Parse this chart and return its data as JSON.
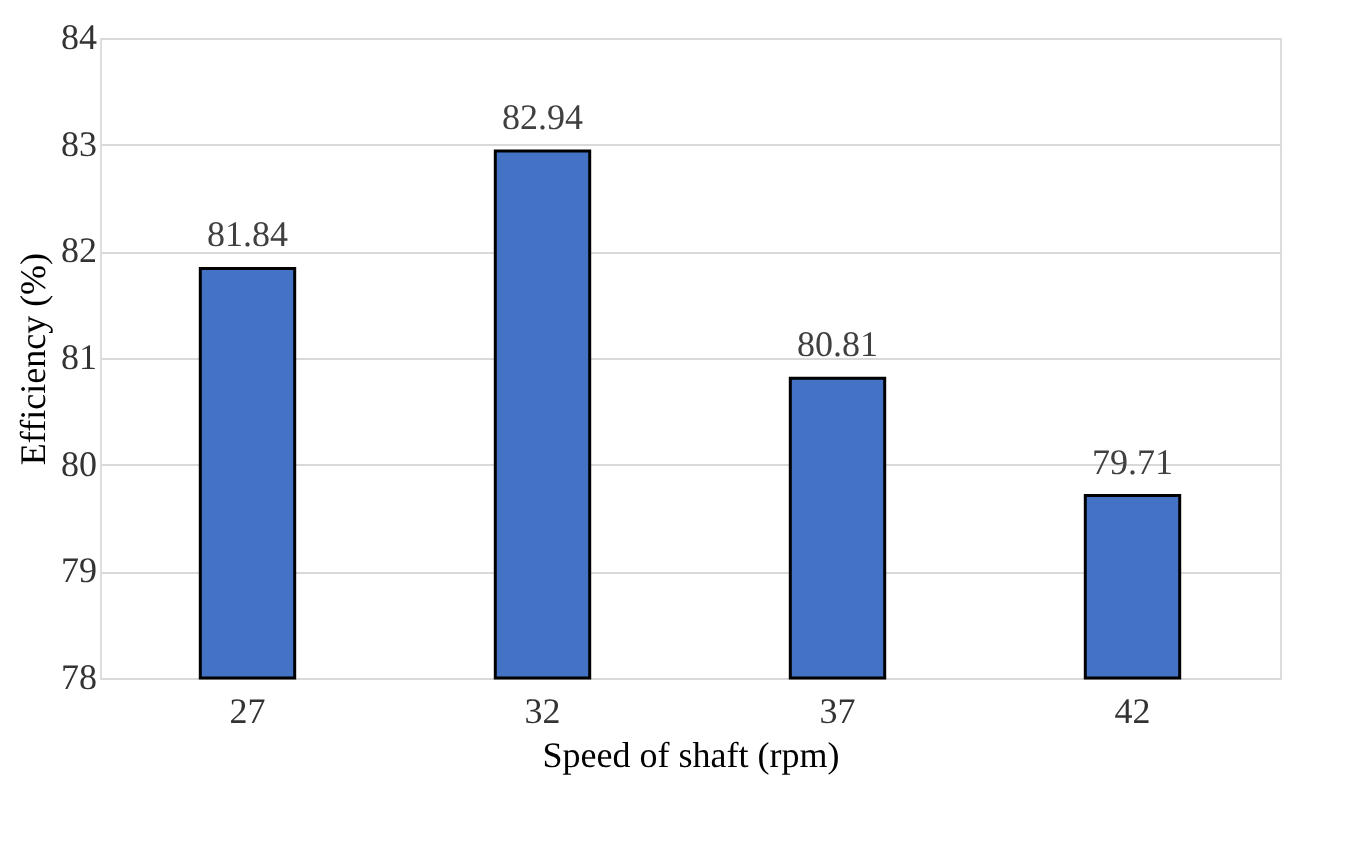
{
  "chart_data": {
    "type": "bar",
    "xlabel": "Speed of shaft (rpm)",
    "ylabel": "Efficiency (%)",
    "categories": [
      "27",
      "32",
      "37",
      "42"
    ],
    "values": [
      81.84,
      82.94,
      80.81,
      79.71
    ],
    "color": "#4472c4",
    "ylim": [
      78,
      84
    ],
    "yticks": [
      78,
      79,
      80,
      81,
      82,
      83,
      84
    ],
    "grid": "y",
    "data_labels": true
  }
}
